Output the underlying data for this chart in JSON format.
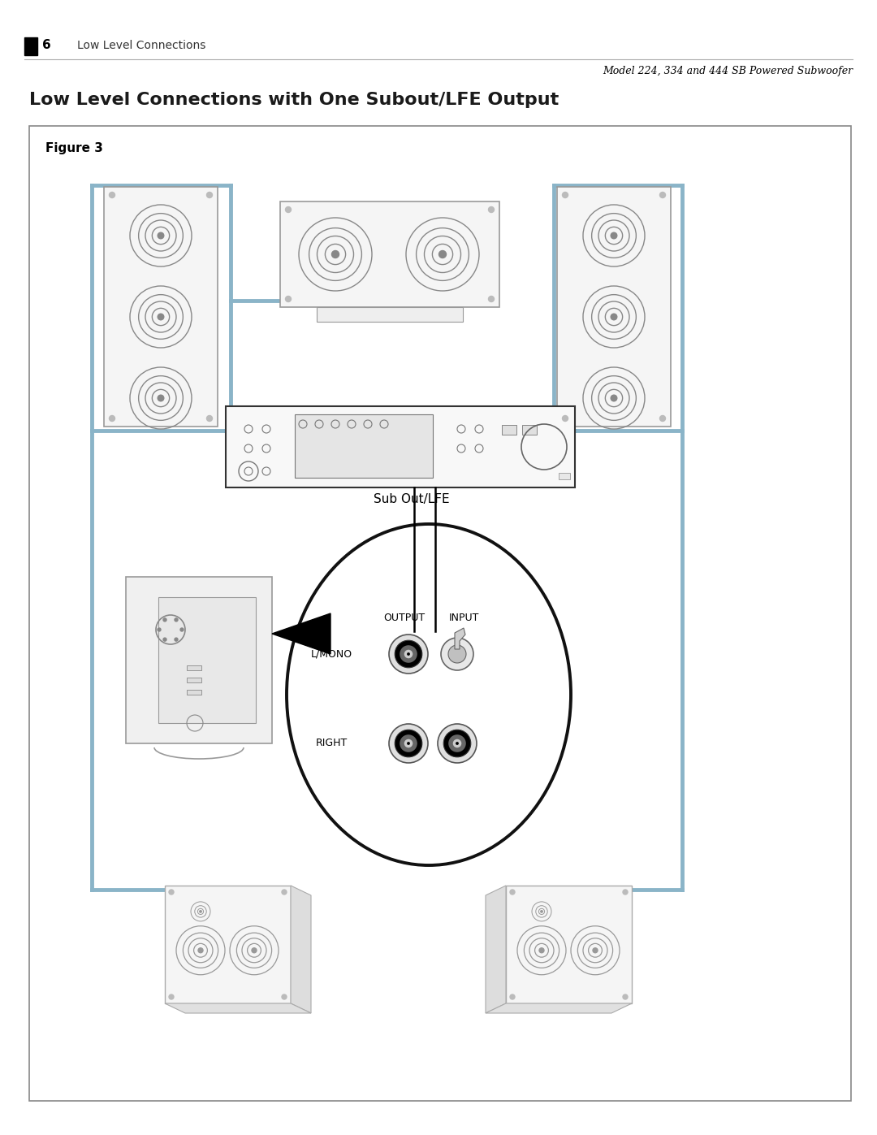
{
  "page_width": 10.8,
  "page_height": 13.97,
  "bg_color": "#ffffff",
  "header_line_color": "#aaaaaa",
  "page_num": "6",
  "header_left": "Low Level Connections",
  "header_right": "Model 224, 334 and 444 SB Powered Subwoofer",
  "title": "Low Level Connections with One Subout/LFE Output",
  "figure_label": "Figure 3",
  "sub_out_lfe_label": "Sub Out/LFE",
  "output_label": "OUTPUT",
  "input_label": "INPUT",
  "lmono_label": "L/MONO",
  "right_label": "RIGHT",
  "wire_color": "#8ab4c8",
  "wire_lw": 3.5
}
